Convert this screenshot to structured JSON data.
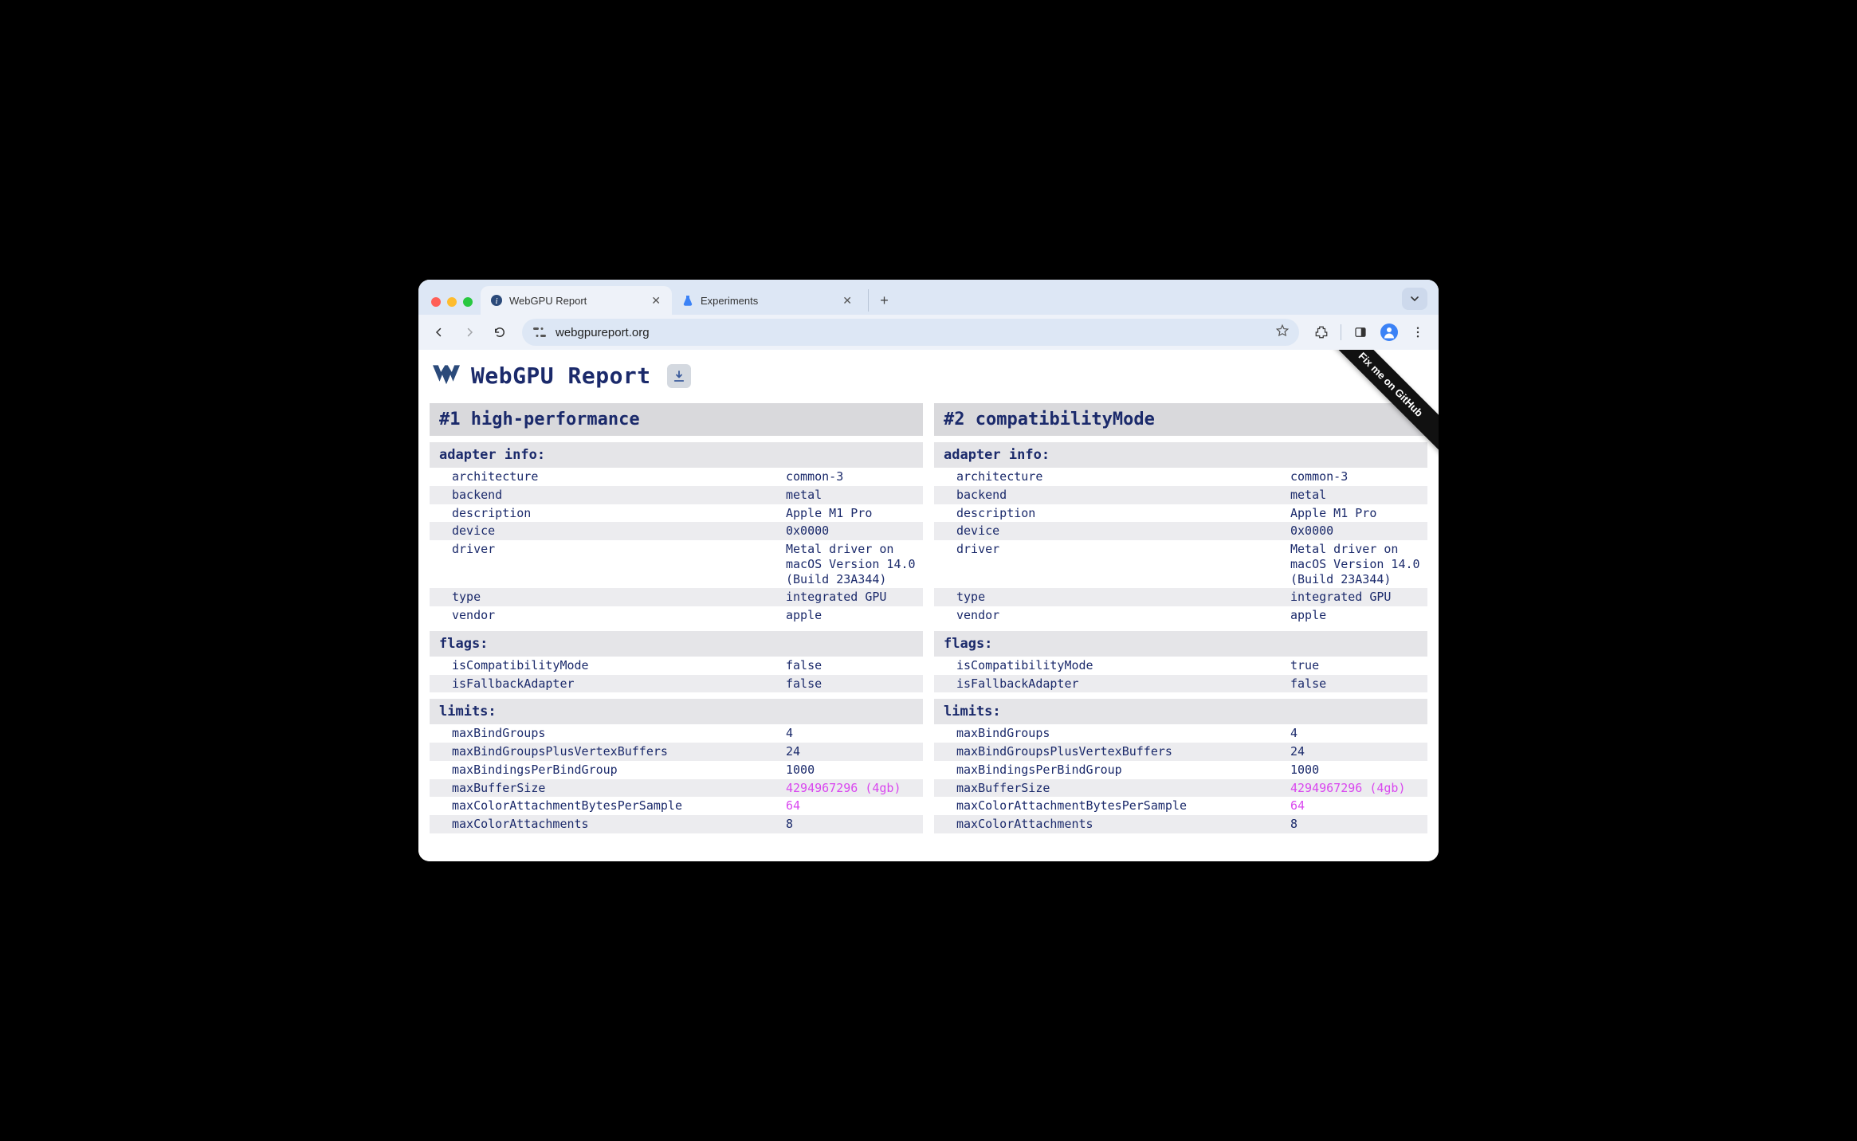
{
  "browser": {
    "tabs": [
      {
        "title": "WebGPU Report",
        "active": true,
        "favicon": "info"
      },
      {
        "title": "Experiments",
        "active": false,
        "favicon": "flask"
      }
    ],
    "url": "webgpureport.org"
  },
  "page": {
    "title": "WebGPU Report",
    "ribbon": "Fix me on GitHub"
  },
  "panels": [
    {
      "title": "#1 high-performance",
      "sections": [
        {
          "title": "adapter info:",
          "rows": [
            {
              "k": "architecture",
              "v": "common-3"
            },
            {
              "k": "backend",
              "v": "metal"
            },
            {
              "k": "description",
              "v": "Apple M1 Pro"
            },
            {
              "k": "device",
              "v": "0x0000"
            },
            {
              "k": "driver",
              "v": "Metal driver on macOS Version 14.0 (Build 23A344)"
            },
            {
              "k": "type",
              "v": "integrated GPU"
            },
            {
              "k": "vendor",
              "v": "apple"
            }
          ]
        },
        {
          "title": "flags:",
          "rows": [
            {
              "k": "isCompatibilityMode",
              "v": "false"
            },
            {
              "k": "isFallbackAdapter",
              "v": "false"
            }
          ]
        },
        {
          "title": "limits:",
          "rows": [
            {
              "k": "maxBindGroups",
              "v": "4"
            },
            {
              "k": "maxBindGroupsPlusVertexBuffers",
              "v": "24"
            },
            {
              "k": "maxBindingsPerBindGroup",
              "v": "1000"
            },
            {
              "k": "maxBufferSize",
              "v": "4294967296 (4gb)",
              "pink": true
            },
            {
              "k": "maxColorAttachmentBytesPerSample",
              "v": "64",
              "pink": true
            },
            {
              "k": "maxColorAttachments",
              "v": "8"
            }
          ]
        }
      ]
    },
    {
      "title": "#2 compatibilityMode",
      "sections": [
        {
          "title": "adapter info:",
          "rows": [
            {
              "k": "architecture",
              "v": "common-3"
            },
            {
              "k": "backend",
              "v": "metal"
            },
            {
              "k": "description",
              "v": "Apple M1 Pro"
            },
            {
              "k": "device",
              "v": "0x0000"
            },
            {
              "k": "driver",
              "v": "Metal driver on macOS Version 14.0 (Build 23A344)"
            },
            {
              "k": "type",
              "v": "integrated GPU"
            },
            {
              "k": "vendor",
              "v": "apple"
            }
          ]
        },
        {
          "title": "flags:",
          "rows": [
            {
              "k": "isCompatibilityMode",
              "v": "true"
            },
            {
              "k": "isFallbackAdapter",
              "v": "false"
            }
          ]
        },
        {
          "title": "limits:",
          "rows": [
            {
              "k": "maxBindGroups",
              "v": "4"
            },
            {
              "k": "maxBindGroupsPlusVertexBuffers",
              "v": "24"
            },
            {
              "k": "maxBindingsPerBindGroup",
              "v": "1000"
            },
            {
              "k": "maxBufferSize",
              "v": "4294967296 (4gb)",
              "pink": true
            },
            {
              "k": "maxColorAttachmentBytesPerSample",
              "v": "64",
              "pink": true
            },
            {
              "k": "maxColorAttachments",
              "v": "8"
            }
          ]
        }
      ]
    }
  ]
}
